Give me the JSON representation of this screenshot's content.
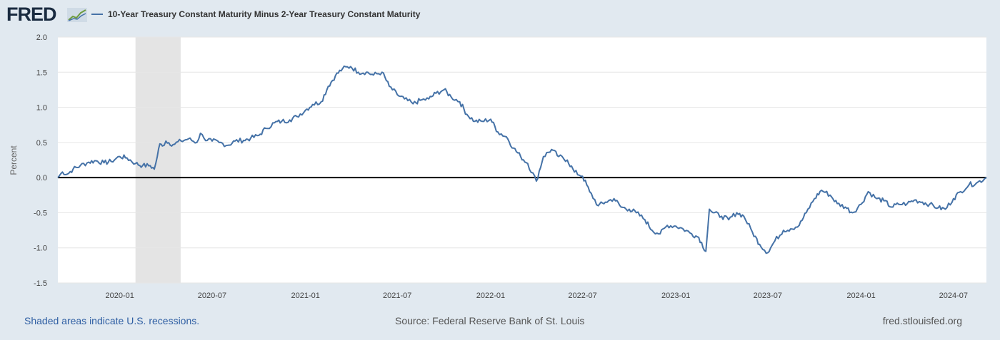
{
  "header": {
    "logo_text": "FRED",
    "logo_icon": "trend-line-icon",
    "legend_label": "10-Year Treasury Constant Maturity Minus 2-Year Treasury Constant Maturity"
  },
  "footer": {
    "recession_note": "Shaded areas indicate U.S. recessions.",
    "source": "Source: Federal Reserve Bank of St. Louis",
    "url": "fred.stlouisfed.org"
  },
  "colors": {
    "series": "#4572a7",
    "background": "#e1e9f0",
    "plot": "#ffffff",
    "recession": "#e4e4e4",
    "zero_line": "#000000"
  },
  "chart_data": {
    "type": "line",
    "title": "",
    "xlabel": "",
    "ylabel": "Percent",
    "xlim": [
      "2019-09-01",
      "2024-09-04"
    ],
    "ylim": [
      -1.5,
      2.0
    ],
    "yticks": [
      2.0,
      1.5,
      1.0,
      0.5,
      0.0,
      -0.5,
      -1.0,
      -1.5
    ],
    "ytick_labels": [
      "2.0",
      "1.5",
      "1.0",
      "0.5",
      "0.0",
      "-0.5",
      "-1.0",
      "-1.5"
    ],
    "xticks": [
      "2020-01-01",
      "2020-07-01",
      "2021-01-01",
      "2021-07-01",
      "2022-01-01",
      "2022-07-01",
      "2023-01-01",
      "2023-07-01",
      "2024-01-01",
      "2024-07-01"
    ],
    "xtick_labels": [
      "2020-01",
      "2020-07",
      "2021-01",
      "2021-07",
      "2022-01",
      "2022-07",
      "2023-01",
      "2023-07",
      "2024-01",
      "2024-07"
    ],
    "grid": "horizontal",
    "recessions": [
      {
        "start": "2020-02-01",
        "end": "2020-04-30"
      }
    ],
    "reference_line": 0,
    "series": [
      {
        "x": [
          "2019-09-01",
          "2019-09-10",
          "2019-09-20",
          "2019-10-01",
          "2019-10-15",
          "2019-11-01",
          "2019-11-15",
          "2019-12-01",
          "2019-12-15",
          "2020-01-01",
          "2020-01-15",
          "2020-02-01",
          "2020-02-15",
          "2020-03-01",
          "2020-03-09",
          "2020-03-15",
          "2020-03-20",
          "2020-03-25",
          "2020-04-01",
          "2020-04-15",
          "2020-05-01",
          "2020-05-15",
          "2020-06-01",
          "2020-06-08",
          "2020-06-15",
          "2020-07-01",
          "2020-07-15",
          "2020-08-01",
          "2020-08-15",
          "2020-09-01",
          "2020-09-15",
          "2020-10-01",
          "2020-10-15",
          "2020-11-01",
          "2020-11-15",
          "2020-12-01",
          "2020-12-15",
          "2021-01-01",
          "2021-01-15",
          "2021-02-01",
          "2021-02-15",
          "2021-03-01",
          "2021-03-15",
          "2021-03-31",
          "2021-04-15",
          "2021-05-01",
          "2021-05-15",
          "2021-06-01",
          "2021-06-15",
          "2021-07-01",
          "2021-07-15",
          "2021-08-01",
          "2021-08-15",
          "2021-09-01",
          "2021-09-15",
          "2021-10-01",
          "2021-10-15",
          "2021-11-01",
          "2021-11-15",
          "2021-12-01",
          "2021-12-15",
          "2022-01-01",
          "2022-01-15",
          "2022-02-01",
          "2022-02-15",
          "2022-03-01",
          "2022-03-15",
          "2022-04-01",
          "2022-04-15",
          "2022-05-01",
          "2022-05-15",
          "2022-06-01",
          "2022-06-15",
          "2022-07-01",
          "2022-07-15",
          "2022-08-01",
          "2022-08-15",
          "2022-09-01",
          "2022-09-15",
          "2022-10-01",
          "2022-10-15",
          "2022-11-01",
          "2022-11-15",
          "2022-12-01",
          "2022-12-15",
          "2023-01-01",
          "2023-01-15",
          "2023-02-01",
          "2023-02-15",
          "2023-03-01",
          "2023-03-08",
          "2023-03-15",
          "2023-04-01",
          "2023-04-15",
          "2023-05-01",
          "2023-05-15",
          "2023-06-01",
          "2023-06-15",
          "2023-07-01",
          "2023-07-15",
          "2023-08-01",
          "2023-08-15",
          "2023-09-01",
          "2023-09-15",
          "2023-10-01",
          "2023-10-15",
          "2023-11-01",
          "2023-11-15",
          "2023-12-01",
          "2023-12-15",
          "2024-01-01",
          "2024-01-15",
          "2024-02-01",
          "2024-02-15",
          "2024-03-01",
          "2024-03-15",
          "2024-04-01",
          "2024-04-15",
          "2024-05-01",
          "2024-05-15",
          "2024-06-01",
          "2024-06-15",
          "2024-07-01",
          "2024-07-15",
          "2024-08-01",
          "2024-08-15",
          "2024-09-04"
        ],
        "y": [
          0.0,
          0.08,
          0.05,
          0.12,
          0.17,
          0.22,
          0.24,
          0.21,
          0.23,
          0.3,
          0.28,
          0.2,
          0.17,
          0.17,
          0.12,
          0.3,
          0.48,
          0.45,
          0.52,
          0.47,
          0.52,
          0.55,
          0.5,
          0.63,
          0.56,
          0.52,
          0.5,
          0.46,
          0.52,
          0.53,
          0.56,
          0.6,
          0.7,
          0.78,
          0.8,
          0.82,
          0.87,
          0.96,
          1.04,
          1.08,
          1.3,
          1.45,
          1.55,
          1.58,
          1.5,
          1.5,
          1.46,
          1.5,
          1.3,
          1.18,
          1.12,
          1.05,
          1.1,
          1.12,
          1.2,
          1.25,
          1.15,
          1.08,
          0.9,
          0.8,
          0.8,
          0.83,
          0.65,
          0.58,
          0.42,
          0.3,
          0.2,
          -0.05,
          0.3,
          0.4,
          0.3,
          0.25,
          0.08,
          0.02,
          -0.2,
          -0.4,
          -0.35,
          -0.3,
          -0.42,
          -0.45,
          -0.5,
          -0.6,
          -0.75,
          -0.8,
          -0.68,
          -0.69,
          -0.73,
          -0.8,
          -0.85,
          -1.05,
          -0.45,
          -0.5,
          -0.55,
          -0.6,
          -0.5,
          -0.55,
          -0.78,
          -0.95,
          -1.07,
          -0.9,
          -0.75,
          -0.73,
          -0.68,
          -0.5,
          -0.3,
          -0.18,
          -0.25,
          -0.37,
          -0.42,
          -0.5,
          -0.38,
          -0.2,
          -0.3,
          -0.33,
          -0.42,
          -0.38,
          -0.37,
          -0.32,
          -0.35,
          -0.38,
          -0.43,
          -0.45,
          -0.3,
          -0.2,
          -0.1,
          -0.08,
          0.0
        ]
      }
    ]
  }
}
